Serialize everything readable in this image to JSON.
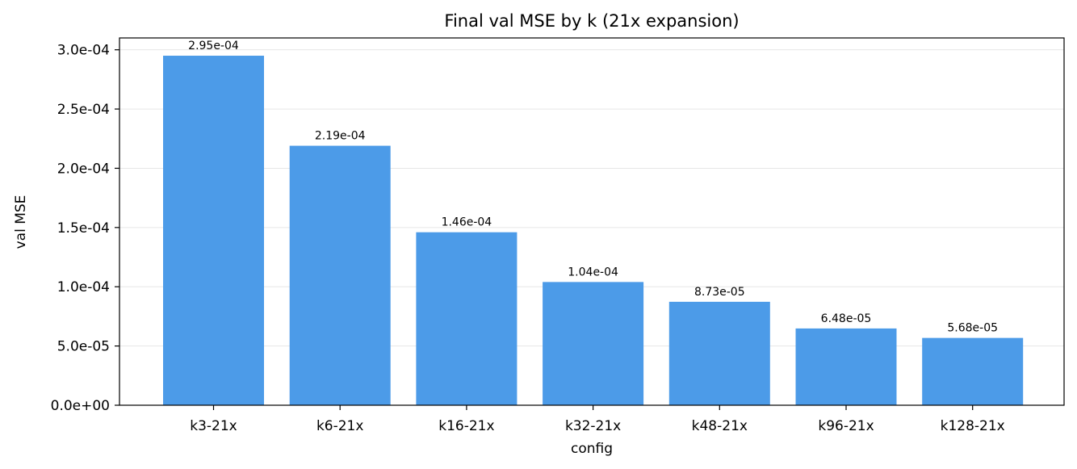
{
  "chart_data": {
    "type": "bar",
    "title": "Final val MSE by k (21x expansion)",
    "xlabel": "config",
    "ylabel": "val MSE",
    "categories": [
      "k3-21x",
      "k6-21x",
      "k16-21x",
      "k32-21x",
      "k48-21x",
      "k96-21x",
      "k128-21x"
    ],
    "values": [
      0.000295,
      0.000219,
      0.000146,
      0.000104,
      8.73e-05,
      6.48e-05,
      5.68e-05
    ],
    "value_labels": [
      "2.95e-04",
      "2.19e-04",
      "1.46e-04",
      "1.04e-04",
      "8.73e-05",
      "6.48e-05",
      "5.68e-05"
    ],
    "ylim": [
      0,
      0.00031
    ],
    "yticks": [
      0,
      5e-05,
      0.0001,
      0.00015,
      0.0002,
      0.00025,
      0.0003
    ],
    "ytick_labels": [
      "0.0e+00",
      "5.0e-05",
      "1.0e-04",
      "1.5e-04",
      "2.0e-04",
      "2.5e-04",
      "3.0e-04"
    ],
    "grid": "horizontal",
    "bar_color": "#4c9be8",
    "grid_color": "#e6e6e6",
    "axis_color": "#000000"
  }
}
